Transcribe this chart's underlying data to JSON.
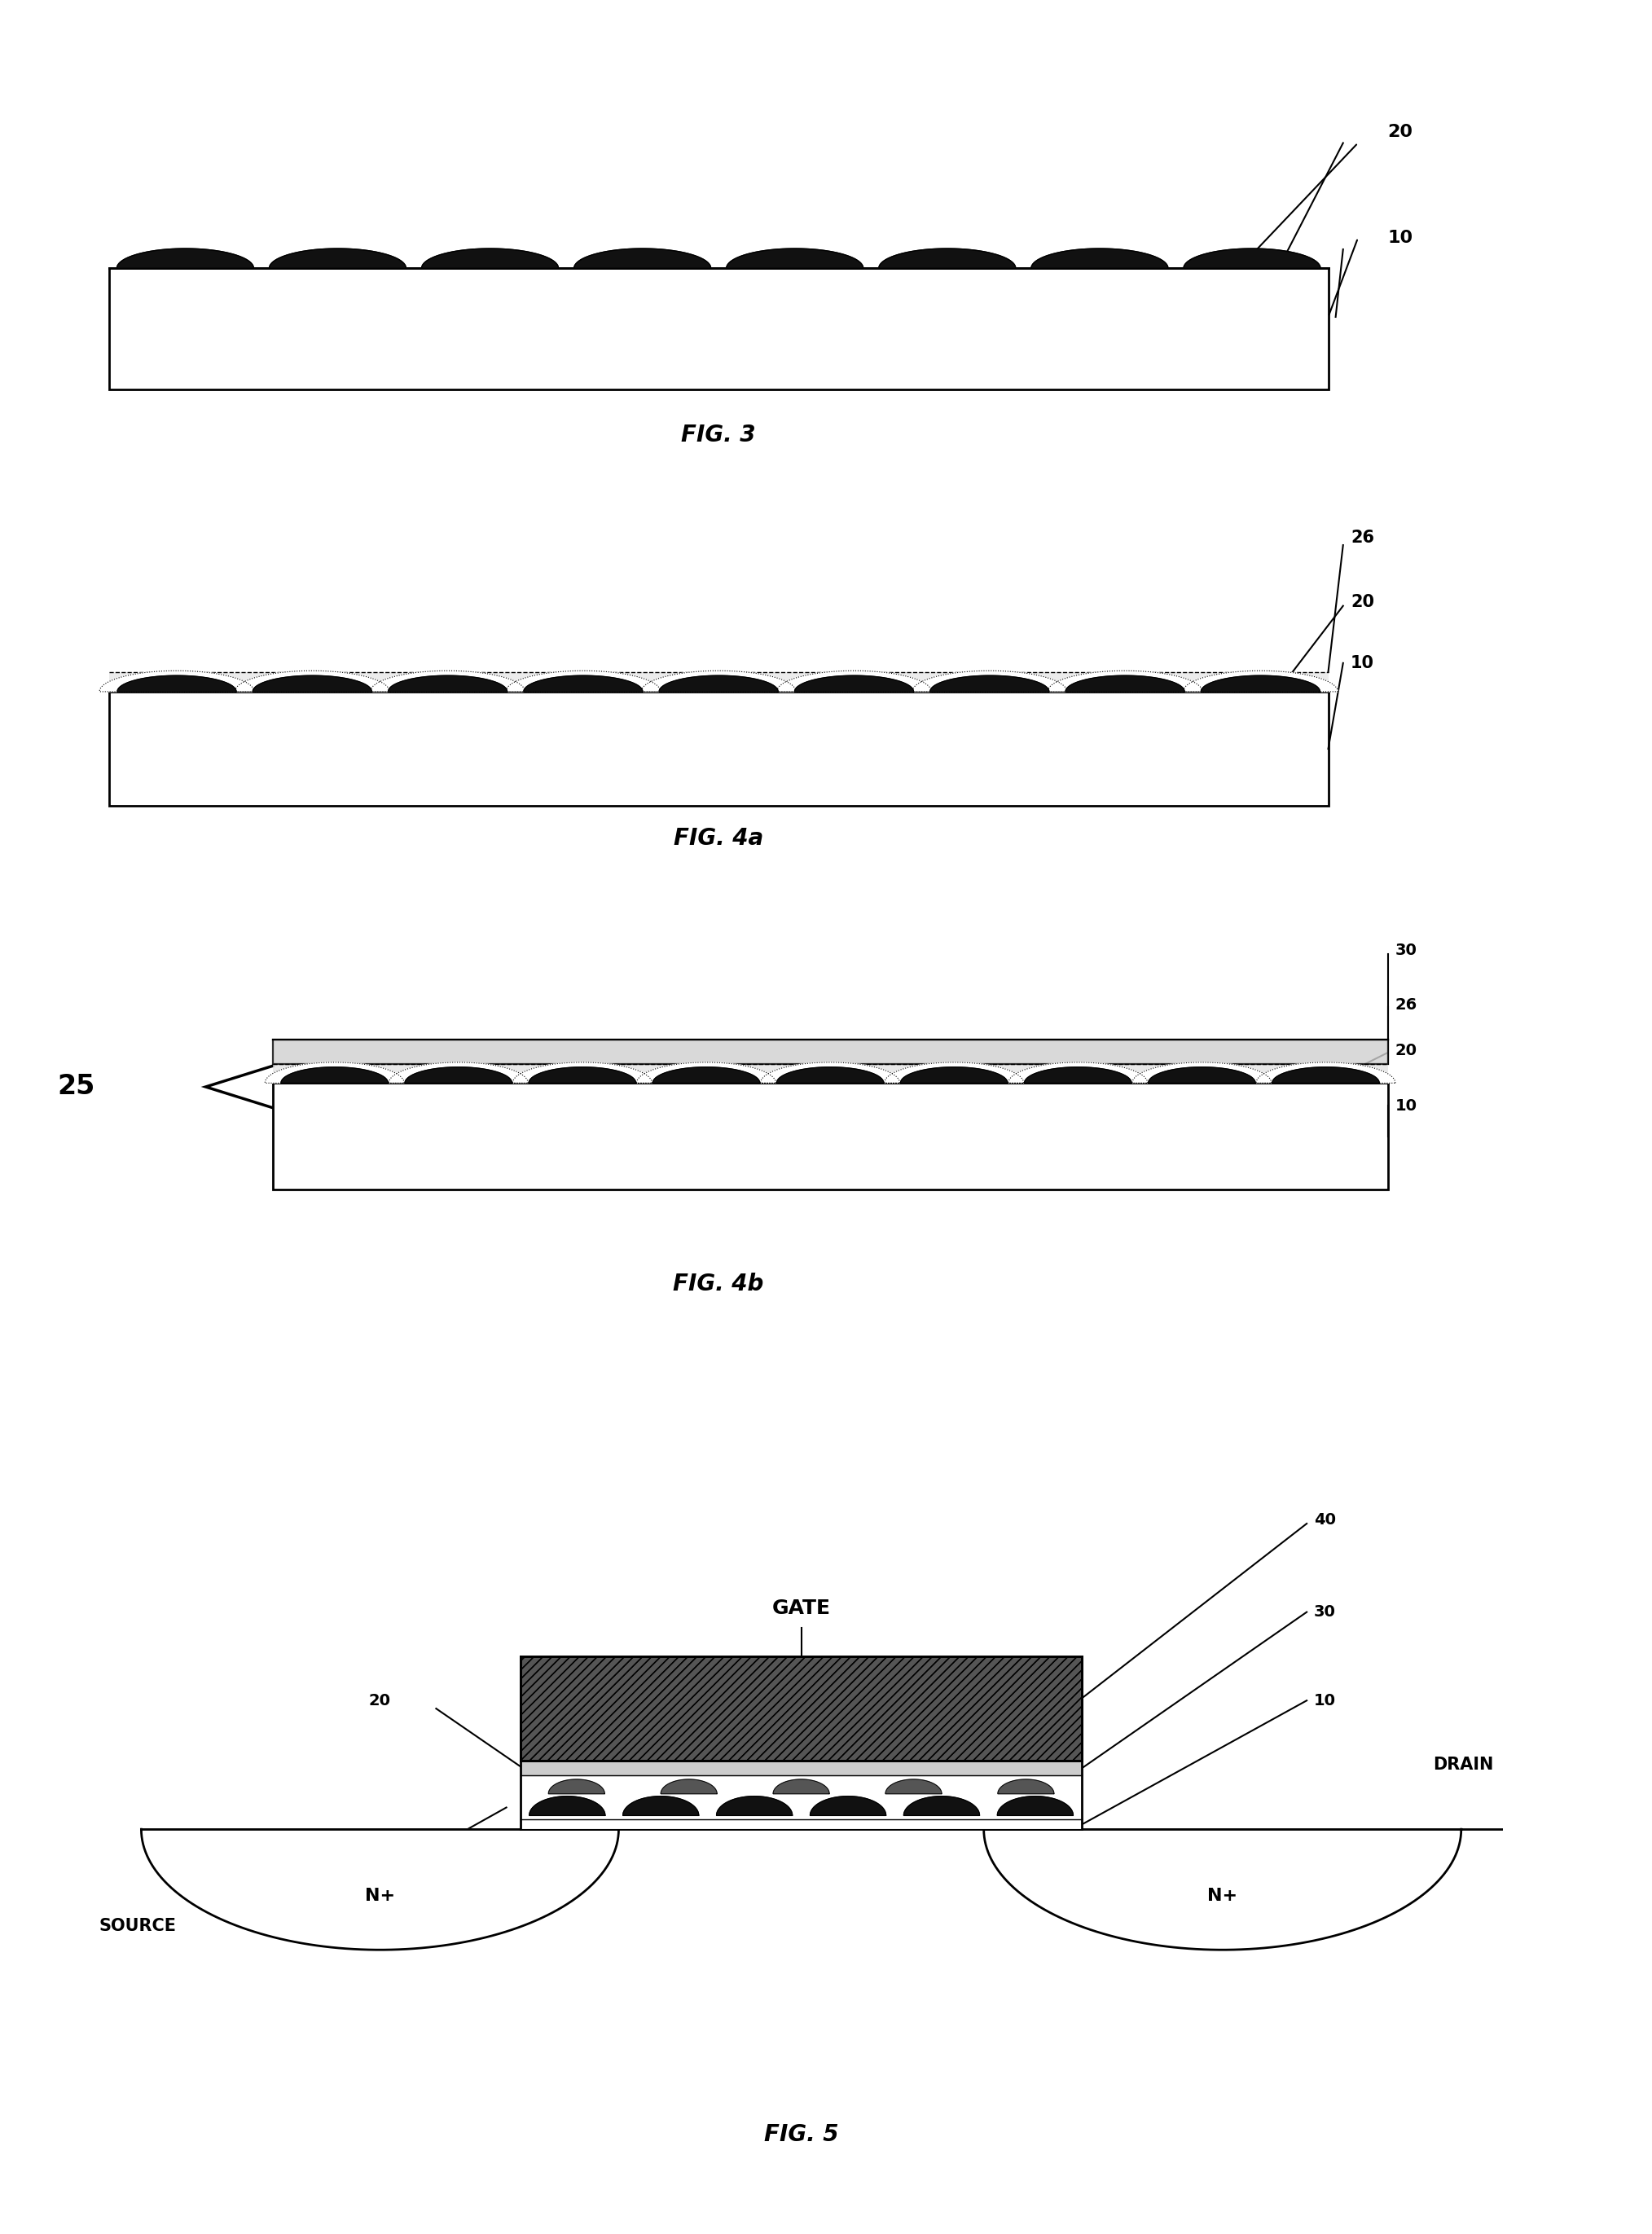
{
  "bg_color": "#ffffff",
  "fig_width": 20.28,
  "fig_height": 27.42,
  "line_color": "#000000",
  "fig3_label": "FIG. 3",
  "fig4a_label": "FIG. 4a",
  "fig4b_label": "FIG. 4b",
  "fig5_label": "FIG. 5",
  "num_dots_fig3": 8,
  "num_dots_fig4": 9,
  "dot_color": "#111111",
  "gate_hatch": "///",
  "gate_color": "#333333"
}
